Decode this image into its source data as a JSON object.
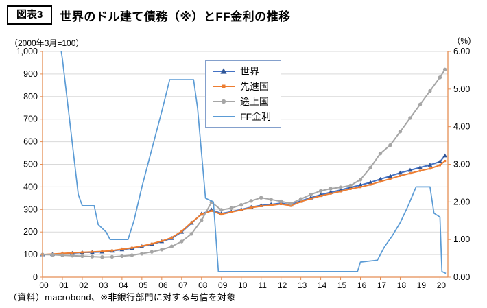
{
  "header": {
    "tag": "図表3",
    "title": "世界のドル建て債務（※）とFF金利の推移"
  },
  "axis_units": {
    "left": "（2000年3月=100）",
    "right": "（%）"
  },
  "footer": "（資料）macrobond、※非銀行部門に対する与信を対象",
  "chart_data": {
    "type": "line",
    "title": "世界のドル建て債務（※）とFF金利の推移",
    "x_note": "x values are years since 2000; axis labeled 00-20",
    "x_tick_labels": [
      "00",
      "01",
      "02",
      "03",
      "04",
      "05",
      "06",
      "07",
      "08",
      "09",
      "10",
      "11",
      "12",
      "13",
      "14",
      "15",
      "16",
      "17",
      "18",
      "19",
      "20"
    ],
    "x_range": [
      0,
      20.4
    ],
    "y_left": {
      "min": 0,
      "max": 1000,
      "step": 100,
      "unit": "2000年3月=100",
      "tick_labels": [
        "0",
        "100",
        "200",
        "300",
        "400",
        "500",
        "600",
        "700",
        "800",
        "900",
        "1,000"
      ]
    },
    "y_right": {
      "min": 0,
      "max": 6,
      "step": 1,
      "unit": "%",
      "tick_labels": [
        "0.00",
        "1.00",
        "2.00",
        "3.00",
        "4.00",
        "5.00",
        "6.00"
      ]
    },
    "style": {
      "grid_color": "#D9D9D9",
      "axis_color": "#E58E55",
      "legend_border": "#84A0CC"
    },
    "legend_position": "top-center-inside",
    "series": [
      {
        "id": "world",
        "name": "世界",
        "axis": "left",
        "color": "#4472C4",
        "marker": "triangle",
        "marker_color": "#2F5597",
        "x": [
          0,
          0.5,
          1,
          1.5,
          2,
          2.5,
          3,
          3.5,
          4,
          4.5,
          5,
          5.5,
          6,
          6.5,
          7,
          7.5,
          8,
          8.5,
          9,
          9.5,
          10,
          10.5,
          11,
          11.5,
          12,
          12.5,
          13,
          13.5,
          14,
          14.5,
          15,
          15.5,
          16,
          16.5,
          17,
          17.5,
          18,
          18.5,
          19,
          19.5,
          20,
          20.25
        ],
        "values": [
          100,
          101,
          104,
          106,
          109,
          110,
          112,
          116,
          122,
          128,
          136,
          146,
          158,
          172,
          200,
          240,
          280,
          298,
          282,
          290,
          300,
          310,
          318,
          322,
          328,
          320,
          338,
          352,
          365,
          376,
          386,
          398,
          408,
          420,
          434,
          448,
          462,
          474,
          486,
          497,
          512,
          538
        ]
      },
      {
        "id": "advanced",
        "name": "先進国",
        "axis": "left",
        "color": "#ED7D31",
        "marker": "square",
        "marker_color": "#ED7D31",
        "x": [
          0,
          0.5,
          1,
          1.5,
          2,
          2.5,
          3,
          3.5,
          4,
          4.5,
          5,
          5.5,
          6,
          6.5,
          7,
          7.5,
          8,
          8.5,
          9,
          9.5,
          10,
          10.5,
          11,
          11.5,
          12,
          12.5,
          13,
          13.5,
          14,
          14.5,
          15,
          15.5,
          16,
          16.5,
          17,
          17.5,
          18,
          18.5,
          19,
          19.5,
          20,
          20.25
        ],
        "values": [
          100,
          102,
          105,
          108,
          110,
          112,
          114,
          118,
          124,
          130,
          138,
          148,
          160,
          175,
          203,
          243,
          278,
          294,
          278,
          288,
          298,
          308,
          315,
          318,
          324,
          316,
          334,
          348,
          360,
          370,
          380,
          391,
          399,
          410,
          423,
          436,
          449,
          460,
          471,
          481,
          496,
          515
        ]
      },
      {
        "id": "developing",
        "name": "途上国",
        "axis": "left",
        "color": "#A6A6A6",
        "marker": "circle",
        "marker_color": "#A6A6A6",
        "x": [
          0,
          0.5,
          1,
          1.5,
          2,
          2.5,
          3,
          3.5,
          4,
          4.5,
          5,
          5.5,
          6,
          6.5,
          7,
          7.5,
          8,
          8.5,
          9,
          9.5,
          10,
          10.5,
          11,
          11.5,
          12,
          12.5,
          13,
          13.5,
          14,
          14.5,
          15,
          15.5,
          16,
          16.5,
          17,
          17.5,
          18,
          18.5,
          19,
          19.5,
          20,
          20.25
        ],
        "values": [
          100,
          99,
          97,
          95,
          93,
          91,
          89,
          90,
          93,
          97,
          104,
          112,
          122,
          136,
          158,
          192,
          252,
          332,
          298,
          306,
          320,
          338,
          352,
          344,
          336,
          326,
          346,
          366,
          382,
          392,
          398,
          406,
          432,
          485,
          548,
          585,
          645,
          705,
          765,
          825,
          885,
          920
        ]
      },
      {
        "id": "ff-rate",
        "name": "FF金利",
        "axis": "right",
        "color": "#5B9BD5",
        "marker": "none",
        "marker_color": "#5B9BD5",
        "x": [
          0,
          0.8,
          1.0,
          1.4,
          1.8,
          2.0,
          2.6,
          2.8,
          3.2,
          3.4,
          4.3,
          4.6,
          5.0,
          5.5,
          6.0,
          6.4,
          7.6,
          7.8,
          8.2,
          8.6,
          8.85,
          15.85,
          16.0,
          16.85,
          17.2,
          17.6,
          18.0,
          18.4,
          18.8,
          19.5,
          19.7,
          20.0,
          20.1,
          20.3
        ],
        "values": [
          6.5,
          6.5,
          5.8,
          4.0,
          2.2,
          1.9,
          1.9,
          1.4,
          1.2,
          1.0,
          1.0,
          1.5,
          2.4,
          3.4,
          4.4,
          5.25,
          5.25,
          4.5,
          2.1,
          2.0,
          0.15,
          0.15,
          0.4,
          0.45,
          0.8,
          1.1,
          1.45,
          1.9,
          2.4,
          2.4,
          1.7,
          1.6,
          0.15,
          0.1
        ]
      }
    ]
  }
}
